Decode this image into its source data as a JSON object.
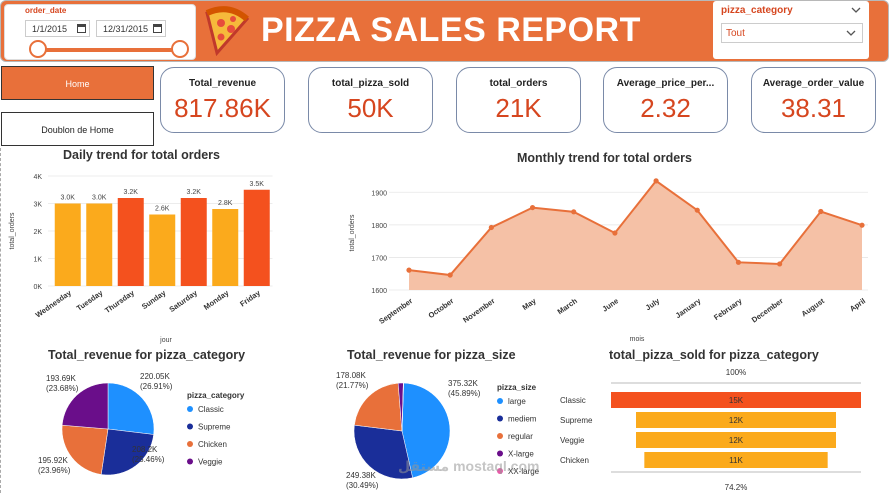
{
  "header": {
    "title": "PIZZA SALES REPORT",
    "date_filter": {
      "label": "order_date",
      "start": "1/1/2015",
      "end": "12/31/2015"
    },
    "category_filter": {
      "label": "pizza_category",
      "value": "Tout"
    }
  },
  "nav": {
    "home": "Home",
    "doublon": "Doublon de Home"
  },
  "kpis": [
    {
      "label": "Total_revenue",
      "value": "817.86K"
    },
    {
      "label": "total_pizza_sold",
      "value": "50K"
    },
    {
      "label": "total_orders",
      "value": "21K"
    },
    {
      "label": "Average_price_per...",
      "value": "2.32"
    },
    {
      "label": "Average_order_value",
      "value": "38.31"
    }
  ],
  "watermark": "مستقل mostaql.com",
  "colors": {
    "accent": "#e8703a",
    "dark_orange": "#f4511e",
    "amber": "#fbaa1c",
    "blue": "#1e90ff",
    "navy": "#1a2e99",
    "purple": "#6a0e8a",
    "pink": "#e85aa8"
  },
  "chart_data": [
    {
      "id": "daily",
      "type": "bar",
      "title": "Daily trend for total orders",
      "xlabel": "jour",
      "ylabel": "total_orders",
      "ylim": [
        0,
        4000
      ],
      "yticks": [
        "0K",
        "1K",
        "2K",
        "3K",
        "4K"
      ],
      "categories": [
        "Wednesday",
        "Tuesday",
        "Thursday",
        "Sunday",
        "Saturday",
        "Monday",
        "Friday"
      ],
      "values": [
        3000,
        3000,
        3200,
        2600,
        3200,
        2800,
        3500
      ],
      "labels": [
        "3.0K",
        "3.0K",
        "3.2K",
        "2.6K",
        "3.2K",
        "2.8K",
        "3.5K"
      ],
      "bar_colors": [
        "#fbaa1c",
        "#fbaa1c",
        "#f4511e",
        "#fbaa1c",
        "#f4511e",
        "#fbaa1c",
        "#f4511e"
      ]
    },
    {
      "id": "monthly",
      "type": "area",
      "title": "Monthly trend for total orders",
      "xlabel": "mois",
      "ylabel": "total_orders",
      "ylim": [
        1600,
        1950
      ],
      "yticks": [
        "1600",
        "1700",
        "1800",
        "1900"
      ],
      "categories": [
        "September",
        "October",
        "November",
        "May",
        "March",
        "June",
        "July",
        "January",
        "February",
        "December",
        "August",
        "April"
      ],
      "values": [
        1661,
        1646,
        1792,
        1853,
        1840,
        1775,
        1935,
        1845,
        1685,
        1680,
        1841,
        1799
      ]
    },
    {
      "id": "rev_category",
      "type": "pie",
      "title": "Total_revenue for pizza_category",
      "legend_title": "pizza_category",
      "categories": [
        "Classic",
        "Supreme",
        "Chicken",
        "Veggie"
      ],
      "values": [
        220.05,
        208.2,
        195.92,
        193.69
      ],
      "labels": [
        "220.05K",
        "208.2K",
        "195.92K",
        "193.69K"
      ],
      "percents": [
        "(26.91%)",
        "(25.46%)",
        "(23.96%)",
        "(23.68%)"
      ],
      "colors": [
        "#1e90ff",
        "#1a2e99",
        "#e8703a",
        "#6a0e8a"
      ]
    },
    {
      "id": "rev_size",
      "type": "pie",
      "title": "Total_revenue for pizza_size",
      "legend_title": "pizza_size",
      "categories": [
        "large",
        "mediem",
        "regular",
        "X-large",
        "XX-large"
      ],
      "values": [
        375.32,
        249.38,
        178.08,
        14.08,
        1.0
      ],
      "labels": [
        "375.32K",
        "249.38K",
        "178.08K"
      ],
      "percents": [
        "(45.89%)",
        "(30.49%)",
        "(21.77%)"
      ],
      "colors": [
        "#1e90ff",
        "#1a2e99",
        "#e8703a",
        "#6a0e8a",
        "#e85aa8"
      ]
    },
    {
      "id": "sold_category",
      "type": "bar",
      "title": "total_pizza_sold for pizza_category",
      "top_label": "100%",
      "bottom_label": "74.2%",
      "categories": [
        "Classic",
        "Supreme",
        "Veggie",
        "Chicken"
      ],
      "values": [
        15,
        12,
        12,
        11
      ],
      "labels": [
        "15K",
        "12K",
        "12K",
        "11K"
      ],
      "colors": [
        "#f4511e",
        "#fbaa1c",
        "#fbaa1c",
        "#fbaa1c"
      ]
    }
  ]
}
